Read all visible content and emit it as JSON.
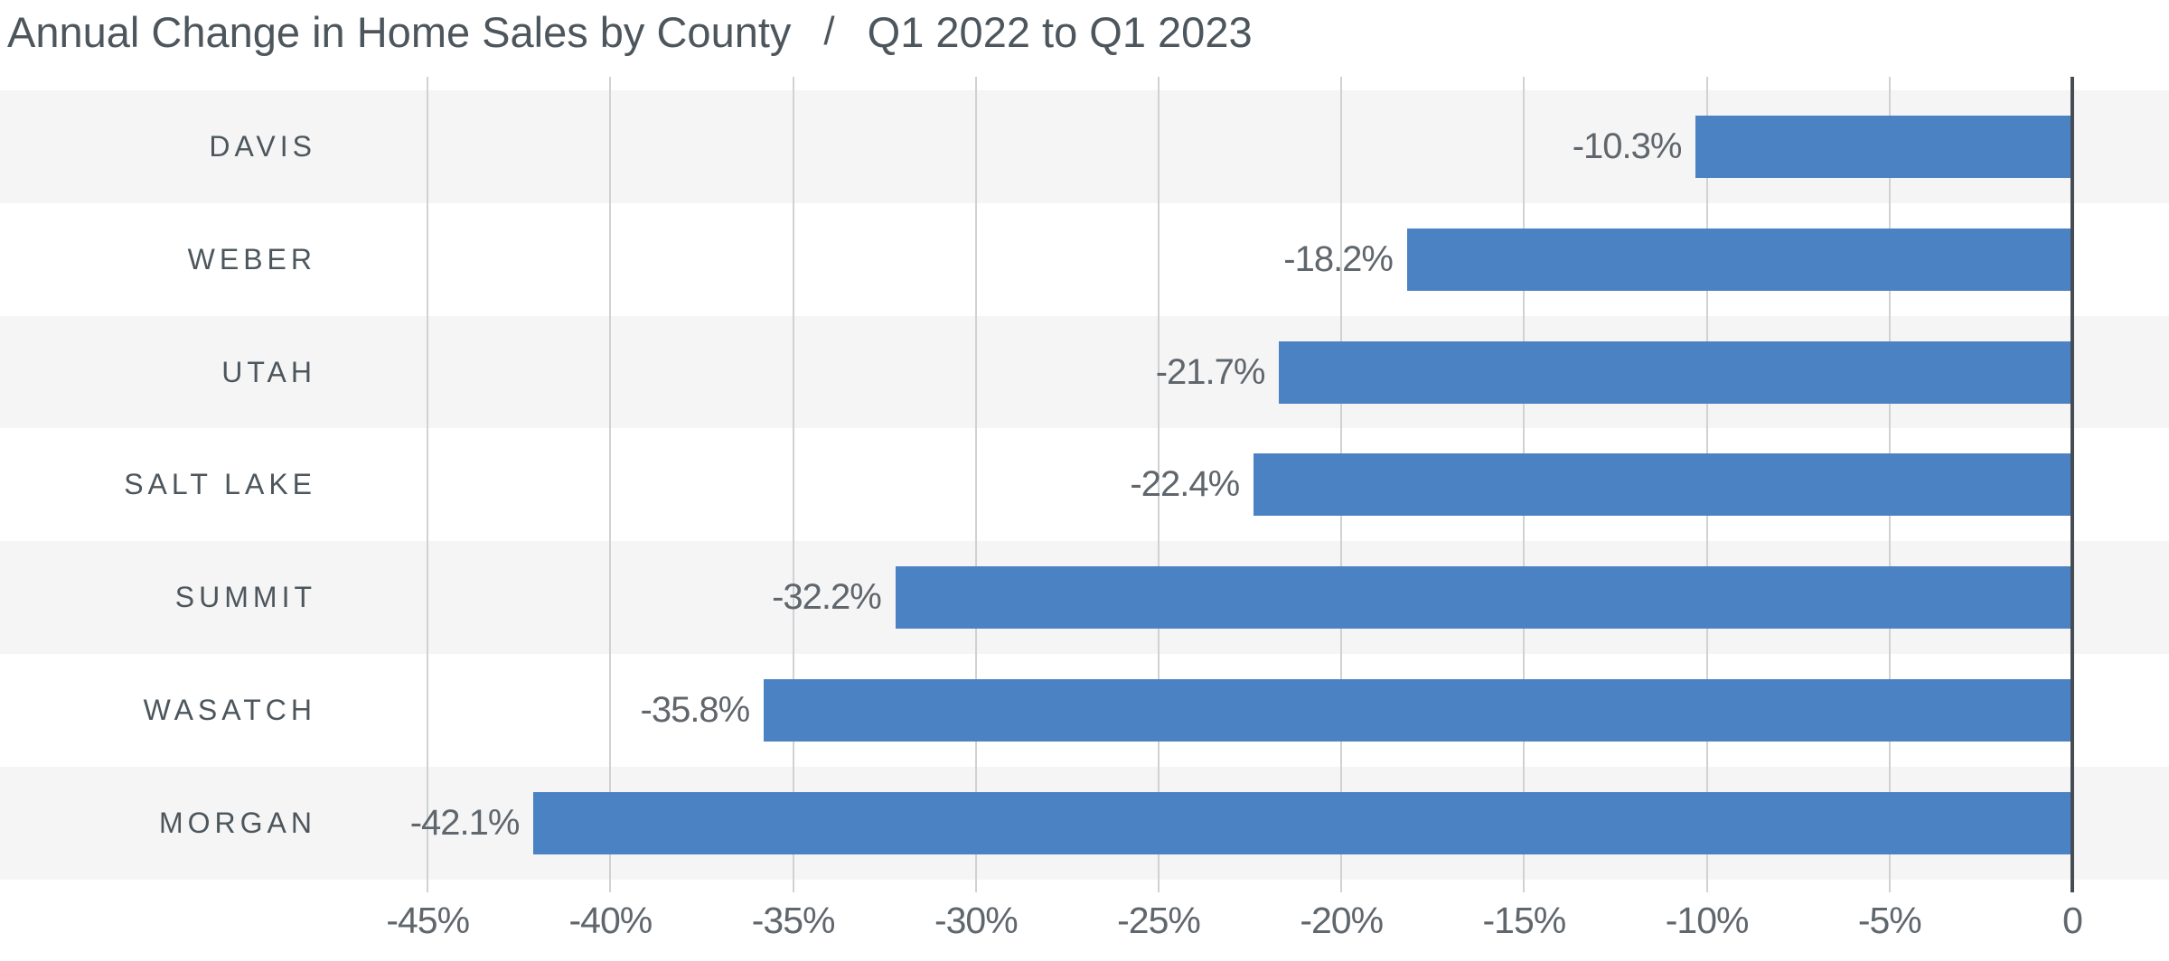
{
  "header": {
    "title": "Annual Change in Home Sales by County",
    "separator": "/",
    "subtitle": "Q1 2022 to Q1 2023"
  },
  "chart_data": {
    "type": "bar",
    "orientation": "horizontal",
    "title": "Annual Change in Home Sales by County",
    "subtitle": "Q1 2022 to Q1 2023",
    "categories": [
      "DAVIS",
      "WEBER",
      "UTAH",
      "SALT LAKE",
      "SUMMIT",
      "WASATCH",
      "MORGAN"
    ],
    "values": [
      -10.3,
      -18.2,
      -21.7,
      -22.4,
      -32.2,
      -35.8,
      -42.1
    ],
    "data_labels": [
      "-10.3%",
      "-18.2%",
      "-21.7%",
      "-22.4%",
      "-32.2%",
      "-35.8%",
      "-42.1%"
    ],
    "x_tick_values": [
      -45,
      -40,
      -35,
      -30,
      -25,
      -20,
      -15,
      -10,
      -5,
      0
    ],
    "x_tick_labels": [
      "-45%",
      "-40%",
      "-35%",
      "-30%",
      "-25%",
      "-20%",
      "-15%",
      "-10%",
      "-5%",
      "0"
    ],
    "xlim": [
      -45,
      0
    ],
    "xlabel": "",
    "ylabel": "",
    "grid": true,
    "legend": false,
    "row_striped": true,
    "colors": {
      "bar": "#4a82c4",
      "row_stripe": "#f5f5f6",
      "row_plain": "#ffffff",
      "gridline": "#cfd2d3",
      "axis_line": "#454d53",
      "title_text": "#4c565c",
      "category_text": "#4c565c",
      "value_text": "#5f666c",
      "tick_text": "#5f666c"
    }
  }
}
